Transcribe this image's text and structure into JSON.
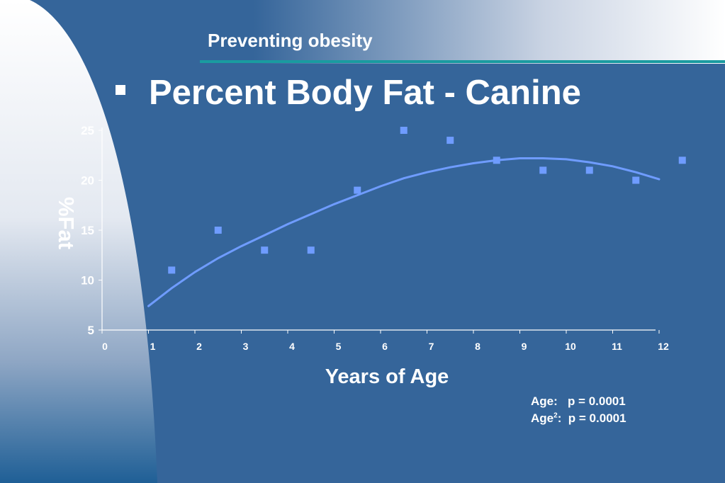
{
  "slide": {
    "header": "Preventing obesity",
    "title": "Percent Body Fat - Canine"
  },
  "stats": [
    {
      "label": "Age:",
      "sup": "",
      "value": "p = 0.0001"
    },
    {
      "label": "Age",
      "sup": "2",
      "value": "p = 0.0001"
    }
  ],
  "colors": {
    "background": "#35659a",
    "accent_rule": "#1a9ba0",
    "marker": "#6f9cff",
    "trend_line": "#6f9cff",
    "text": "#ffffff"
  },
  "chart_data": {
    "type": "scatter",
    "title": "Percent Body Fat - Canine",
    "xlabel": "Years of Age",
    "ylabel": "%Fat",
    "xlim": [
      0,
      12
    ],
    "ylim": [
      5,
      25
    ],
    "x_ticks": [
      "0",
      "1",
      "2",
      "3",
      "4",
      "5",
      "6",
      "7",
      "8",
      "9",
      "10",
      "11",
      "12"
    ],
    "y_ticks": [
      "5",
      "10",
      "15",
      "20",
      "25"
    ],
    "points": [
      {
        "x": 1.5,
        "y": 11
      },
      {
        "x": 2.5,
        "y": 15
      },
      {
        "x": 3.5,
        "y": 13
      },
      {
        "x": 4.5,
        "y": 13
      },
      {
        "x": 5.5,
        "y": 19
      },
      {
        "x": 6.5,
        "y": 25
      },
      {
        "x": 7.5,
        "y": 24
      },
      {
        "x": 8.5,
        "y": 22
      },
      {
        "x": 9.5,
        "y": 21
      },
      {
        "x": 10.5,
        "y": 21
      },
      {
        "x": 11.5,
        "y": 20
      },
      {
        "x": 12.5,
        "y": 22
      }
    ],
    "trend": {
      "x": [
        1,
        1.5,
        2,
        2.5,
        3,
        3.5,
        4,
        4.5,
        5,
        5.5,
        6,
        6.5,
        7,
        7.5,
        8,
        8.5,
        9,
        9.5,
        10,
        10.5,
        11,
        11.5,
        12
      ],
      "y": [
        7.4,
        9.2,
        10.8,
        12.2,
        13.4,
        14.5,
        15.6,
        16.6,
        17.6,
        18.5,
        19.4,
        20.2,
        20.8,
        21.3,
        21.7,
        22.0,
        22.2,
        22.2,
        22.1,
        21.8,
        21.4,
        20.8,
        20.1
      ]
    },
    "grid": false,
    "legend": "none"
  }
}
